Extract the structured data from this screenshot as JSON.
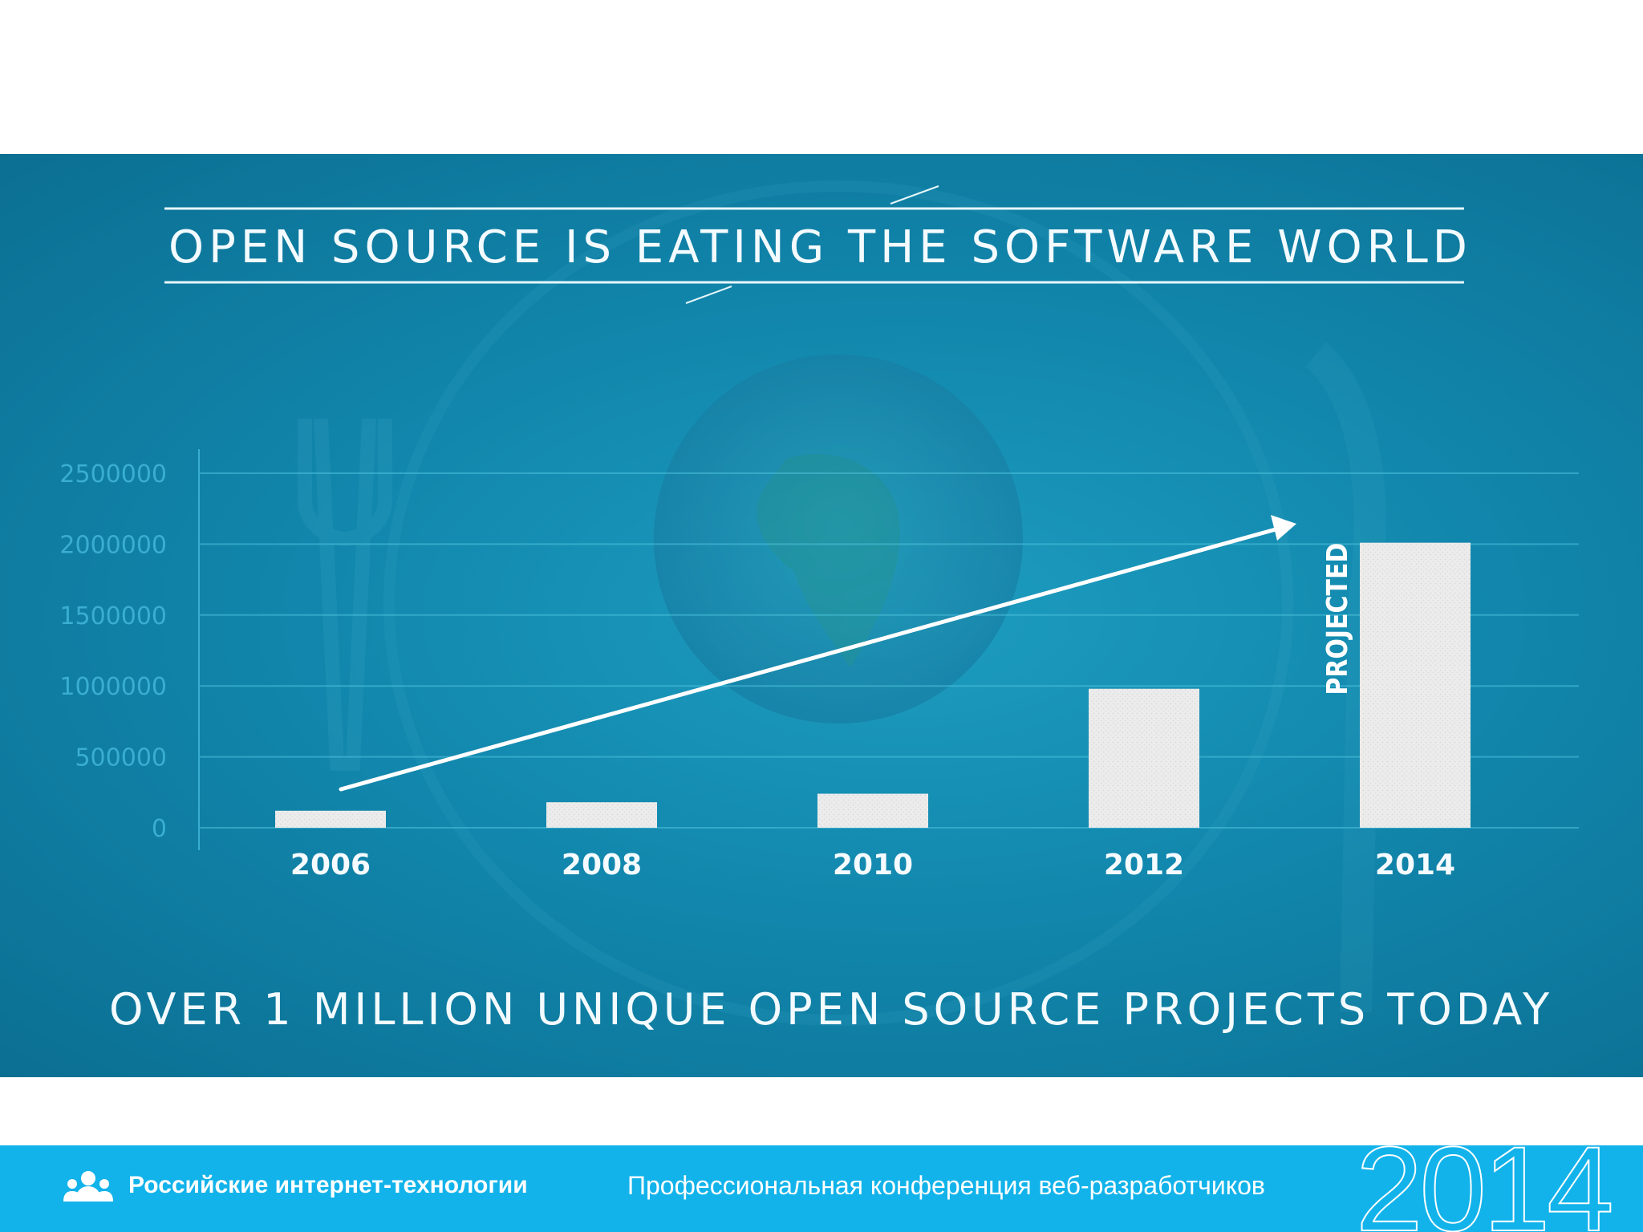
{
  "chart_data": {
    "type": "bar",
    "title": "OPEN SOURCE IS EATING THE SOFTWARE WORLD",
    "caption": "OVER 1 MILLION UNIQUE OPEN SOURCE PROJECTS TODAY",
    "categories": [
      "2006",
      "2008",
      "2010",
      "2012",
      "2014"
    ],
    "values": [
      120000,
      180000,
      240000,
      980000,
      2010000
    ],
    "yticks": [
      "0",
      "500000",
      "1000000",
      "1500000",
      "2000000",
      "2500000"
    ],
    "ylim": [
      0,
      2500000
    ],
    "annotation": {
      "text": "PROJECTED",
      "category": "2014"
    },
    "trend_arrow": true,
    "grid": true,
    "colors": {
      "bars": "#ececec",
      "background": "#1287ad",
      "grid": "#4fc3dc",
      "ticks": "#3aaed0"
    }
  },
  "footer": {
    "org": "Российские интернет-технологии",
    "conference": "Профессиональная конференция веб-разработчиков",
    "year": "2014",
    "logo_icon": "people-icon",
    "color": "#12b3ea"
  }
}
